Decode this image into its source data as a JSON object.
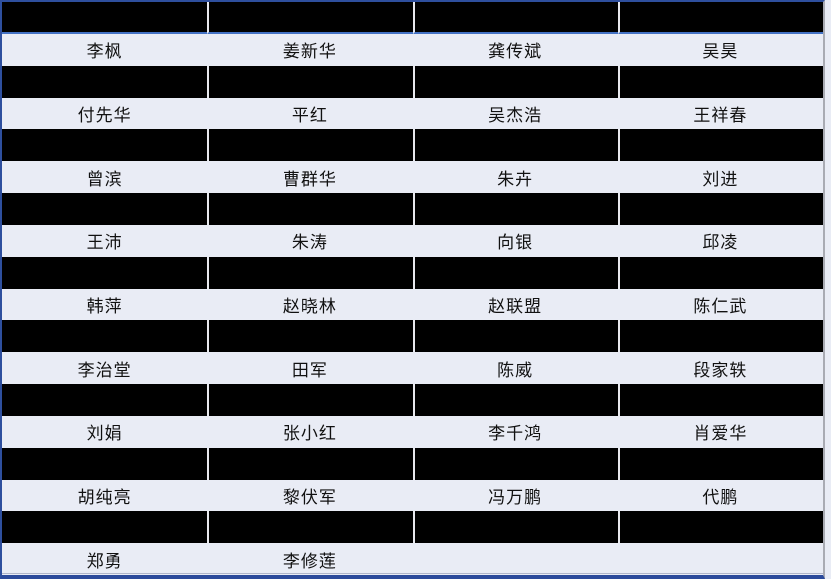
{
  "colors": {
    "page_background": "#e9ecf5",
    "redaction_fill": "#000000",
    "header_separator_blue": "#4472c4",
    "outer_border_blue": "#2e4f9e",
    "bottom_border_navy": "#2b4a9b",
    "column_separator_light": "#e8e9ee",
    "right_edge_gray": "#a9abb3",
    "text_color": "#111111"
  },
  "table": {
    "column_count": 4,
    "row_count": 18,
    "rows": [
      {
        "type": "redacted",
        "cells": [
          "",
          "",
          "",
          ""
        ]
      },
      {
        "type": "names",
        "cells": [
          "李枫",
          "姜新华",
          "龚传斌",
          "吴昊"
        ]
      },
      {
        "type": "redacted",
        "cells": [
          "",
          "",
          "",
          ""
        ]
      },
      {
        "type": "names",
        "cells": [
          "付先华",
          "平红",
          "吴杰浩",
          "王祥春"
        ]
      },
      {
        "type": "redacted",
        "cells": [
          "",
          "",
          "",
          ""
        ]
      },
      {
        "type": "names",
        "cells": [
          "曾滨",
          "曹群华",
          "朱卉",
          "刘进"
        ]
      },
      {
        "type": "redacted",
        "cells": [
          "",
          "",
          "",
          ""
        ]
      },
      {
        "type": "names",
        "cells": [
          "王沛",
          "朱涛",
          "向银",
          "邱凌"
        ]
      },
      {
        "type": "redacted",
        "cells": [
          "",
          "",
          "",
          ""
        ]
      },
      {
        "type": "names",
        "cells": [
          "韩萍",
          "赵晓林",
          "赵联盟",
          "陈仁武"
        ]
      },
      {
        "type": "redacted",
        "cells": [
          "",
          "",
          "",
          ""
        ]
      },
      {
        "type": "names",
        "cells": [
          "李治堂",
          "田军",
          "陈威",
          "段家轶"
        ]
      },
      {
        "type": "redacted",
        "cells": [
          "",
          "",
          "",
          ""
        ]
      },
      {
        "type": "names",
        "cells": [
          "刘娟",
          "张小红",
          "李千鸿",
          "肖爱华"
        ]
      },
      {
        "type": "redacted",
        "cells": [
          "",
          "",
          "",
          ""
        ]
      },
      {
        "type": "names",
        "cells": [
          "胡纯亮",
          "黎伏军",
          "冯万鹏",
          "代鹏"
        ]
      },
      {
        "type": "redacted",
        "cells": [
          "",
          "",
          "",
          ""
        ]
      },
      {
        "type": "names",
        "cells": [
          "郑勇",
          "李修莲",
          "",
          ""
        ]
      }
    ]
  }
}
